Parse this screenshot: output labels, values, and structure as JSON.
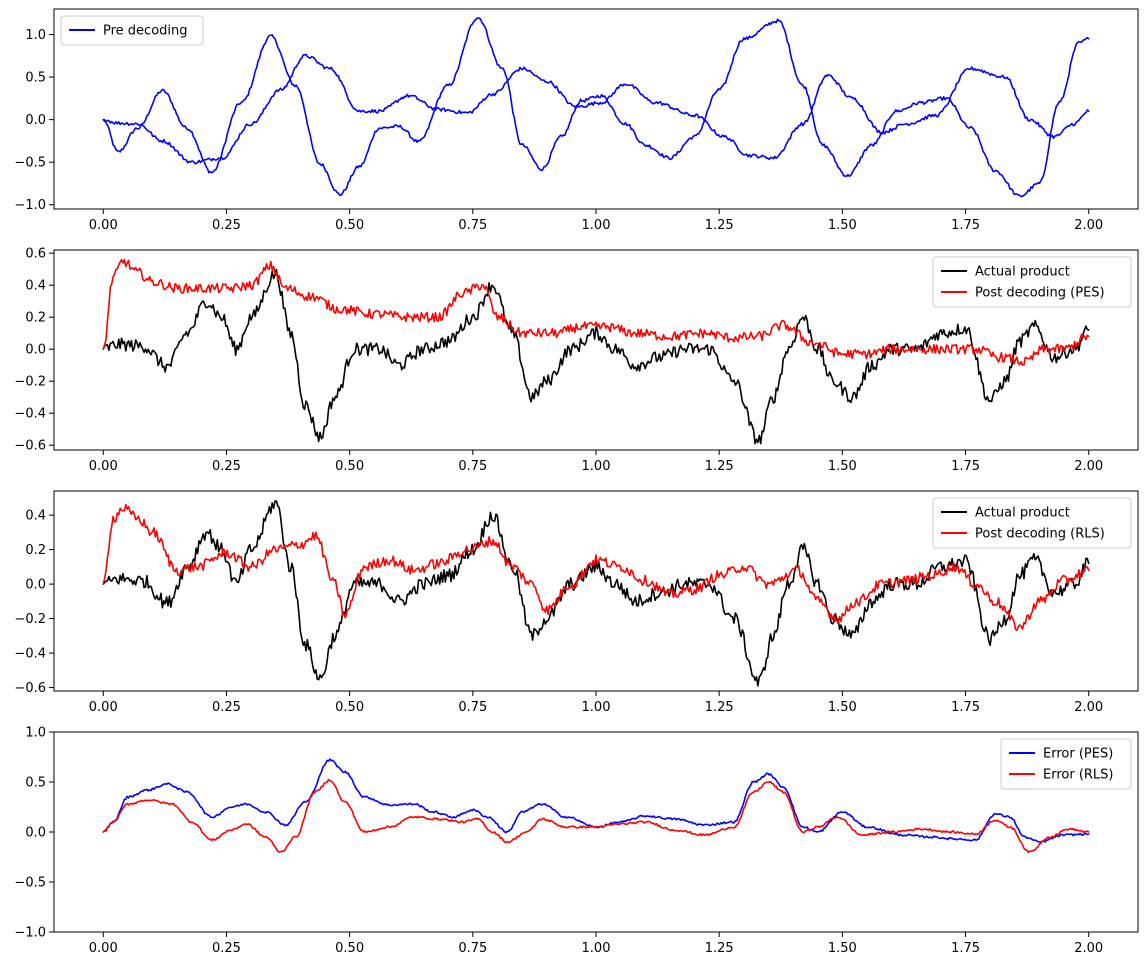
{
  "chart_data": [
    {
      "type": "line",
      "xlim": [
        -0.1,
        2.1
      ],
      "ylim": [
        -1.05,
        1.3
      ],
      "xticks": [
        0.0,
        0.25,
        0.5,
        0.75,
        1.0,
        1.25,
        1.5,
        1.75,
        2.0
      ],
      "xtick_labels": [
        "0.00",
        "0.25",
        "0.50",
        "0.75",
        "1.00",
        "1.25",
        "1.50",
        "1.75",
        "2.00"
      ],
      "yticks": [
        -1.0,
        -0.5,
        0.0,
        0.5,
        1.0
      ],
      "ytick_labels": [
        "−1.0",
        "−0.5",
        "0.0",
        "0.5",
        "1.0"
      ],
      "legend": {
        "position": "top-left",
        "entries": [
          {
            "label": "Pre decoding",
            "color": "#0000ff"
          }
        ]
      },
      "series": [
        {
          "name": "Pre decoding",
          "color": "#0000ff",
          "noise": 0.02,
          "x": [
            0.0,
            0.03,
            0.07,
            0.12,
            0.17,
            0.22,
            0.28,
            0.34,
            0.39,
            0.44,
            0.48,
            0.52,
            0.56,
            0.6,
            0.64,
            0.7,
            0.76,
            0.81,
            0.85,
            0.89,
            0.93,
            0.97,
            1.01,
            1.06,
            1.1,
            1.15,
            1.2,
            1.25,
            1.3,
            1.37,
            1.42,
            1.46,
            1.51,
            1.56,
            1.61,
            1.66,
            1.71,
            1.76,
            1.81,
            1.86,
            1.9,
            1.94,
            1.98,
            2.0
          ],
          "y": [
            0.0,
            -0.38,
            -0.1,
            0.34,
            -0.1,
            -0.62,
            0.2,
            0.98,
            0.4,
            -0.52,
            -0.88,
            -0.55,
            -0.1,
            -0.08,
            -0.26,
            0.4,
            1.2,
            0.6,
            -0.3,
            -0.58,
            -0.2,
            0.22,
            0.28,
            -0.05,
            -0.3,
            -0.45,
            -0.2,
            0.35,
            0.95,
            1.16,
            0.4,
            -0.3,
            -0.66,
            -0.3,
            0.1,
            0.2,
            0.25,
            -0.1,
            -0.6,
            -0.9,
            -0.75,
            0.2,
            0.9,
            0.95
          ]
        },
        {
          "name": "Pre decoding",
          "color": "#0000ff",
          "noise": 0.02,
          "x": [
            0.0,
            0.03,
            0.07,
            0.12,
            0.18,
            0.24,
            0.3,
            0.36,
            0.41,
            0.46,
            0.52,
            0.56,
            0.62,
            0.68,
            0.74,
            0.79,
            0.85,
            0.9,
            0.96,
            1.01,
            1.06,
            1.12,
            1.2,
            1.26,
            1.31,
            1.36,
            1.42,
            1.47,
            1.52,
            1.58,
            1.63,
            1.69,
            1.76,
            1.83,
            1.88,
            1.93,
            1.97,
            2.0
          ],
          "y": [
            0.0,
            -0.04,
            -0.05,
            -0.25,
            -0.5,
            -0.45,
            -0.05,
            0.35,
            0.75,
            0.6,
            0.1,
            0.1,
            0.28,
            0.12,
            0.08,
            0.3,
            0.6,
            0.45,
            0.15,
            0.2,
            0.42,
            0.2,
            0.05,
            -0.2,
            -0.42,
            -0.45,
            -0.05,
            0.52,
            0.25,
            -0.15,
            -0.05,
            0.05,
            0.6,
            0.5,
            0.0,
            -0.2,
            -0.05,
            0.1
          ]
        }
      ]
    },
    {
      "type": "line",
      "xlim": [
        -0.1,
        2.1
      ],
      "ylim": [
        -0.63,
        0.62
      ],
      "xticks": [
        0.0,
        0.25,
        0.5,
        0.75,
        1.0,
        1.25,
        1.5,
        1.75,
        2.0
      ],
      "xtick_labels": [
        "0.00",
        "0.25",
        "0.50",
        "0.75",
        "1.00",
        "1.25",
        "1.50",
        "1.75",
        "2.00"
      ],
      "yticks": [
        -0.6,
        -0.4,
        -0.2,
        0.0,
        0.2,
        0.4,
        0.6
      ],
      "ytick_labels": [
        "−0.6",
        "−0.4",
        "−0.2",
        "0.0",
        "0.2",
        "0.4",
        "0.6"
      ],
      "legend": {
        "position": "top-right",
        "entries": [
          {
            "label": "Actual product",
            "color": "#000000"
          },
          {
            "label": "Post decoding (PES)",
            "color": "#ff0000"
          }
        ]
      },
      "series": [
        {
          "name": "Actual product",
          "color": "#000000",
          "noise": 0.04,
          "x": [
            0.0,
            0.03,
            0.08,
            0.13,
            0.17,
            0.21,
            0.24,
            0.27,
            0.3,
            0.35,
            0.38,
            0.41,
            0.44,
            0.47,
            0.51,
            0.56,
            0.6,
            0.65,
            0.7,
            0.75,
            0.79,
            0.83,
            0.87,
            0.9,
            0.95,
            1.0,
            1.04,
            1.08,
            1.13,
            1.18,
            1.23,
            1.28,
            1.33,
            1.36,
            1.39,
            1.42,
            1.45,
            1.48,
            1.52,
            1.56,
            1.6,
            1.65,
            1.7,
            1.75,
            1.8,
            1.83,
            1.86,
            1.89,
            1.93,
            1.97,
            2.0
          ],
          "y": [
            0.0,
            0.03,
            0.02,
            -0.11,
            0.1,
            0.3,
            0.2,
            0.0,
            0.2,
            0.47,
            0.1,
            -0.35,
            -0.55,
            -0.3,
            0.0,
            0.0,
            -0.1,
            0.0,
            0.05,
            0.2,
            0.4,
            0.1,
            -0.3,
            -0.2,
            0.0,
            0.1,
            0.0,
            -0.1,
            -0.05,
            0.0,
            0.0,
            -0.2,
            -0.57,
            -0.3,
            0.0,
            0.2,
            0.0,
            -0.2,
            -0.3,
            -0.1,
            0.0,
            0.0,
            0.1,
            0.13,
            -0.32,
            -0.2,
            0.05,
            0.14,
            -0.05,
            0.0,
            0.12
          ]
        },
        {
          "name": "Post decoding (PES)",
          "color": "#ff0000",
          "noise": 0.03,
          "x": [
            0.0,
            0.02,
            0.04,
            0.07,
            0.1,
            0.15,
            0.2,
            0.26,
            0.3,
            0.34,
            0.37,
            0.42,
            0.48,
            0.55,
            0.62,
            0.68,
            0.73,
            0.77,
            0.8,
            0.85,
            0.92,
            0.97,
            1.02,
            1.08,
            1.15,
            1.22,
            1.28,
            1.33,
            1.38,
            1.44,
            1.5,
            1.55,
            1.6,
            1.66,
            1.72,
            1.77,
            1.82,
            1.87,
            1.91,
            1.95,
            2.0
          ],
          "y": [
            0.0,
            0.45,
            0.55,
            0.48,
            0.42,
            0.38,
            0.38,
            0.38,
            0.4,
            0.52,
            0.38,
            0.33,
            0.25,
            0.22,
            0.2,
            0.2,
            0.35,
            0.4,
            0.2,
            0.1,
            0.1,
            0.14,
            0.14,
            0.1,
            0.08,
            0.1,
            0.07,
            0.08,
            0.15,
            0.04,
            -0.03,
            -0.03,
            0.0,
            0.0,
            0.0,
            0.0,
            -0.05,
            -0.08,
            0.0,
            0.0,
            0.08
          ]
        }
      ]
    },
    {
      "type": "line",
      "xlim": [
        -0.1,
        2.1
      ],
      "ylim": [
        -0.62,
        0.54
      ],
      "xticks": [
        0.0,
        0.25,
        0.5,
        0.75,
        1.0,
        1.25,
        1.5,
        1.75,
        2.0
      ],
      "xtick_labels": [
        "0.00",
        "0.25",
        "0.50",
        "0.75",
        "1.00",
        "1.25",
        "1.50",
        "1.75",
        "2.00"
      ],
      "yticks": [
        -0.6,
        -0.4,
        -0.2,
        0.0,
        0.2,
        0.4
      ],
      "ytick_labels": [
        "−0.6",
        "−0.4",
        "−0.2",
        "0.0",
        "0.2",
        "0.4"
      ],
      "legend": {
        "position": "top-right",
        "entries": [
          {
            "label": "Actual product",
            "color": "#000000"
          },
          {
            "label": "Post decoding (RLS)",
            "color": "#ff0000"
          }
        ]
      },
      "series": [
        {
          "name": "Actual product",
          "color": "#000000",
          "noise": 0.04,
          "x": [
            0.0,
            0.03,
            0.08,
            0.13,
            0.17,
            0.21,
            0.24,
            0.27,
            0.3,
            0.35,
            0.38,
            0.41,
            0.44,
            0.47,
            0.51,
            0.56,
            0.6,
            0.65,
            0.7,
            0.75,
            0.79,
            0.83,
            0.87,
            0.9,
            0.95,
            1.0,
            1.04,
            1.08,
            1.13,
            1.18,
            1.23,
            1.28,
            1.33,
            1.36,
            1.39,
            1.42,
            1.45,
            1.48,
            1.52,
            1.56,
            1.6,
            1.65,
            1.7,
            1.75,
            1.8,
            1.83,
            1.86,
            1.89,
            1.93,
            1.97,
            2.0
          ],
          "y": [
            0.0,
            0.03,
            0.02,
            -0.11,
            0.1,
            0.3,
            0.2,
            0.0,
            0.2,
            0.47,
            0.1,
            -0.35,
            -0.55,
            -0.3,
            0.0,
            0.0,
            -0.1,
            0.0,
            0.05,
            0.2,
            0.4,
            0.1,
            -0.3,
            -0.2,
            0.0,
            0.1,
            0.0,
            -0.1,
            -0.05,
            0.0,
            0.0,
            -0.2,
            -0.57,
            -0.3,
            0.0,
            0.2,
            0.0,
            -0.2,
            -0.3,
            -0.1,
            0.0,
            0.0,
            0.1,
            0.13,
            -0.32,
            -0.2,
            0.05,
            0.14,
            -0.05,
            0.0,
            0.12
          ]
        },
        {
          "name": "Post decoding (RLS)",
          "color": "#ff0000",
          "noise": 0.03,
          "x": [
            0.0,
            0.02,
            0.04,
            0.07,
            0.1,
            0.15,
            0.19,
            0.25,
            0.3,
            0.35,
            0.4,
            0.43,
            0.47,
            0.49,
            0.53,
            0.58,
            0.63,
            0.68,
            0.74,
            0.79,
            0.83,
            0.87,
            0.9,
            0.95,
            1.0,
            1.05,
            1.1,
            1.15,
            1.2,
            1.25,
            1.3,
            1.35,
            1.41,
            1.45,
            1.49,
            1.53,
            1.58,
            1.63,
            1.68,
            1.73,
            1.77,
            1.81,
            1.86,
            1.9,
            1.95,
            2.0
          ],
          "y": [
            0.0,
            0.38,
            0.44,
            0.38,
            0.3,
            0.08,
            0.1,
            0.18,
            0.1,
            0.2,
            0.23,
            0.28,
            0.0,
            -0.18,
            0.1,
            0.14,
            0.08,
            0.12,
            0.2,
            0.25,
            0.1,
            0.0,
            -0.15,
            0.0,
            0.14,
            0.1,
            0.02,
            -0.06,
            -0.03,
            0.05,
            0.1,
            0.0,
            0.08,
            -0.1,
            -0.2,
            -0.1,
            0.0,
            0.02,
            0.05,
            0.1,
            0.0,
            -0.1,
            -0.25,
            -0.1,
            0.02,
            0.08
          ]
        }
      ]
    },
    {
      "type": "line",
      "xlim": [
        -0.1,
        2.1
      ],
      "ylim": [
        -1.0,
        1.0
      ],
      "xticks": [
        0.0,
        0.25,
        0.5,
        0.75,
        1.0,
        1.25,
        1.5,
        1.75,
        2.0
      ],
      "xtick_labels": [
        "0.00",
        "0.25",
        "0.50",
        "0.75",
        "1.00",
        "1.25",
        "1.50",
        "1.75",
        "2.00"
      ],
      "yticks": [
        -1.0,
        -0.5,
        0.0,
        0.5,
        1.0
      ],
      "ytick_labels": [
        "−1.0",
        "−0.5",
        "0.0",
        "0.5",
        "1.0"
      ],
      "legend": {
        "position": "top-right",
        "entries": [
          {
            "label": "Error (PES)",
            "color": "#0000ff"
          },
          {
            "label": "Error (RLS)",
            "color": "#ff0000"
          }
        ]
      },
      "series": [
        {
          "name": "Error (PES)",
          "color": "#0000ff",
          "noise": 0.01,
          "x": [
            0.0,
            0.02,
            0.05,
            0.09,
            0.13,
            0.17,
            0.22,
            0.26,
            0.29,
            0.33,
            0.37,
            0.41,
            0.46,
            0.49,
            0.53,
            0.58,
            0.63,
            0.67,
            0.71,
            0.75,
            0.78,
            0.82,
            0.85,
            0.89,
            0.94,
            1.0,
            1.05,
            1.1,
            1.16,
            1.22,
            1.28,
            1.32,
            1.35,
            1.38,
            1.42,
            1.45,
            1.5,
            1.55,
            1.62,
            1.68,
            1.73,
            1.77,
            1.81,
            1.84,
            1.87,
            1.9,
            1.95,
            2.0
          ],
          "y": [
            0.0,
            0.1,
            0.35,
            0.42,
            0.48,
            0.4,
            0.15,
            0.25,
            0.28,
            0.2,
            0.07,
            0.3,
            0.72,
            0.6,
            0.35,
            0.27,
            0.28,
            0.2,
            0.15,
            0.22,
            0.15,
            0.0,
            0.2,
            0.28,
            0.15,
            0.05,
            0.1,
            0.16,
            0.13,
            0.07,
            0.1,
            0.5,
            0.58,
            0.45,
            0.05,
            0.0,
            0.2,
            0.05,
            -0.03,
            -0.05,
            -0.07,
            -0.08,
            0.18,
            0.15,
            -0.05,
            -0.1,
            -0.03,
            -0.02
          ]
        },
        {
          "name": "Error (RLS)",
          "color": "#ff0000",
          "noise": 0.01,
          "x": [
            0.0,
            0.02,
            0.05,
            0.09,
            0.14,
            0.18,
            0.22,
            0.26,
            0.29,
            0.33,
            0.36,
            0.39,
            0.43,
            0.46,
            0.49,
            0.53,
            0.58,
            0.63,
            0.68,
            0.73,
            0.76,
            0.79,
            0.82,
            0.86,
            0.89,
            0.94,
            1.0,
            1.05,
            1.1,
            1.16,
            1.22,
            1.28,
            1.32,
            1.35,
            1.38,
            1.42,
            1.45,
            1.49,
            1.54,
            1.6,
            1.66,
            1.72,
            1.77,
            1.81,
            1.84,
            1.88,
            1.92,
            1.96,
            2.0
          ],
          "y": [
            0.0,
            0.1,
            0.28,
            0.32,
            0.28,
            0.1,
            -0.08,
            0.02,
            0.08,
            -0.05,
            -0.2,
            -0.05,
            0.4,
            0.52,
            0.3,
            0.0,
            0.05,
            0.15,
            0.13,
            0.1,
            0.13,
            0.0,
            -0.1,
            0.0,
            0.13,
            0.05,
            0.05,
            0.08,
            0.1,
            0.02,
            -0.03,
            0.05,
            0.4,
            0.5,
            0.4,
            0.0,
            0.05,
            0.15,
            -0.03,
            0.0,
            0.03,
            0.0,
            -0.02,
            0.12,
            0.05,
            -0.2,
            -0.05,
            0.03,
            0.0
          ]
        }
      ]
    }
  ]
}
